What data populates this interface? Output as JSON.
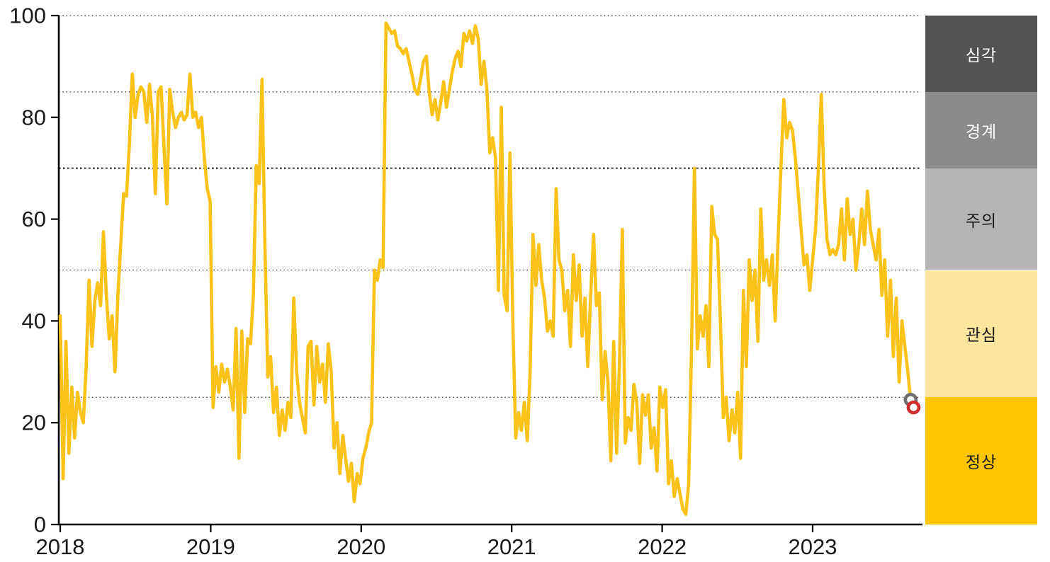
{
  "chart_data": {
    "type": "line",
    "title": "",
    "xlabel": "",
    "ylabel": "",
    "ylim": [
      0,
      100
    ],
    "xlim": [
      2018.0,
      2023.75
    ],
    "x_ticks": [
      "2018",
      "2019",
      "2020",
      "2021",
      "2022",
      "2023"
    ],
    "x_tick_years": [
      2018,
      2019,
      2020,
      2021,
      2022,
      2023
    ],
    "y_ticks": [
      0,
      20,
      40,
      60,
      80,
      100
    ],
    "gridlines": {
      "style": "dotted",
      "values": [
        100,
        85,
        70,
        50,
        25
      ],
      "emphasized_value": 70,
      "color": "#333333"
    },
    "legend_position": "right",
    "series": [
      {
        "color": "#fbc21a",
        "x_start_year": 2018.0,
        "x_step_years": 0.0191571,
        "values": [
          41,
          9,
          36,
          14,
          27,
          17,
          26,
          22,
          20,
          31,
          48,
          35,
          44,
          47.5,
          43,
          57.5,
          45,
          36.5,
          41,
          30,
          45,
          55,
          65,
          64.5,
          75,
          88.5,
          80,
          84.5,
          86,
          85,
          79,
          86.5,
          80,
          65,
          85,
          86,
          74,
          63,
          85.5,
          81,
          78,
          80,
          81,
          79.5,
          80.5,
          88.5,
          80,
          81,
          78,
          80,
          72,
          66,
          63.5,
          23,
          31,
          26,
          31.5,
          28,
          30.5,
          27,
          22.5,
          38.5,
          13,
          38,
          22,
          36.5,
          35.5,
          45,
          70.5,
          67,
          87.5,
          55,
          29,
          33,
          22,
          27,
          17.5,
          22.5,
          18.5,
          24,
          21,
          44.5,
          30,
          24,
          21,
          18,
          35,
          36,
          23.5,
          35,
          28,
          31.5,
          24,
          35.5,
          30,
          15,
          20,
          10,
          17.5,
          13,
          8.5,
          12,
          4.5,
          10,
          8,
          13,
          15,
          18,
          20,
          50,
          48,
          52,
          50.5,
          98.5,
          97.5,
          96.5,
          97,
          94,
          93.5,
          92.5,
          93.5,
          91,
          88.5,
          85.5,
          84.5,
          87.5,
          91,
          92,
          85,
          80.5,
          83.5,
          79.5,
          83,
          87,
          82,
          85.5,
          89,
          91.5,
          93,
          90,
          96.5,
          95,
          97,
          94.5,
          98,
          95.5,
          86.5,
          91,
          85.5,
          73,
          76,
          72,
          46,
          82,
          45,
          42,
          73,
          40,
          17,
          22,
          18.5,
          24,
          16.5,
          30,
          57,
          47,
          55,
          48,
          44.5,
          38,
          40,
          37,
          66,
          52,
          50,
          42,
          46,
          35,
          53,
          44,
          51,
          37,
          44.5,
          31,
          45,
          57,
          43,
          45.5,
          24.5,
          34,
          28,
          12.5,
          36,
          14,
          32,
          58,
          16,
          21,
          18.5,
          27.5,
          24,
          12,
          25.5,
          21.5,
          25.5,
          15,
          19,
          10.5,
          27,
          23,
          26.5,
          8,
          12.5,
          5.5,
          9,
          6,
          3,
          2,
          8,
          35,
          70,
          34.5,
          41,
          37,
          43,
          31,
          62.5,
          57,
          56,
          40,
          21,
          25,
          16.5,
          22.5,
          18,
          26,
          13,
          46,
          31,
          52,
          44,
          50,
          36,
          62,
          48,
          52,
          47,
          53,
          40,
          56,
          70,
          83.5,
          76,
          79,
          77.5,
          72,
          65,
          58,
          51,
          53,
          46,
          52,
          58,
          70,
          84.5,
          66,
          56,
          53,
          54,
          53,
          55,
          62,
          52,
          64,
          57,
          60,
          50,
          55,
          62,
          55,
          65.5,
          58,
          55,
          52,
          58,
          45,
          52,
          37,
          48,
          33,
          44.5,
          28,
          40,
          35,
          30,
          24.5,
          23
        ]
      }
    ],
    "end_markers": [
      {
        "point_from_end": 2,
        "value": 24.5,
        "ring_color": "#6f6f6f",
        "name": "previous-week-marker"
      },
      {
        "point_from_end": 1,
        "value": 23,
        "ring_color": "#d02c2c",
        "name": "latest-week-marker"
      }
    ]
  },
  "legend": {
    "bands": [
      {
        "label": "심각",
        "from": 85,
        "to": 100,
        "color": "#535353",
        "text_color": "#ffffff"
      },
      {
        "label": "경계",
        "from": 70,
        "to": 85,
        "color": "#8b8b8b",
        "text_color": "#ffffff"
      },
      {
        "label": "주의",
        "from": 50,
        "to": 70,
        "color": "#b5b5b5",
        "text_color": "#1a1a1a"
      },
      {
        "label": "관심",
        "from": 25,
        "to": 50,
        "color": "#fce59d",
        "text_color": "#1a1a1a"
      },
      {
        "label": "정상",
        "from": 0,
        "to": 25,
        "color": "#fdc500",
        "text_color": "#1a1a1a"
      }
    ]
  },
  "colors": {
    "line": "#fbc21a",
    "axis": "#000000",
    "tick_label": "#1a1a1a",
    "gridline": "#333333",
    "background": "#ffffff"
  }
}
